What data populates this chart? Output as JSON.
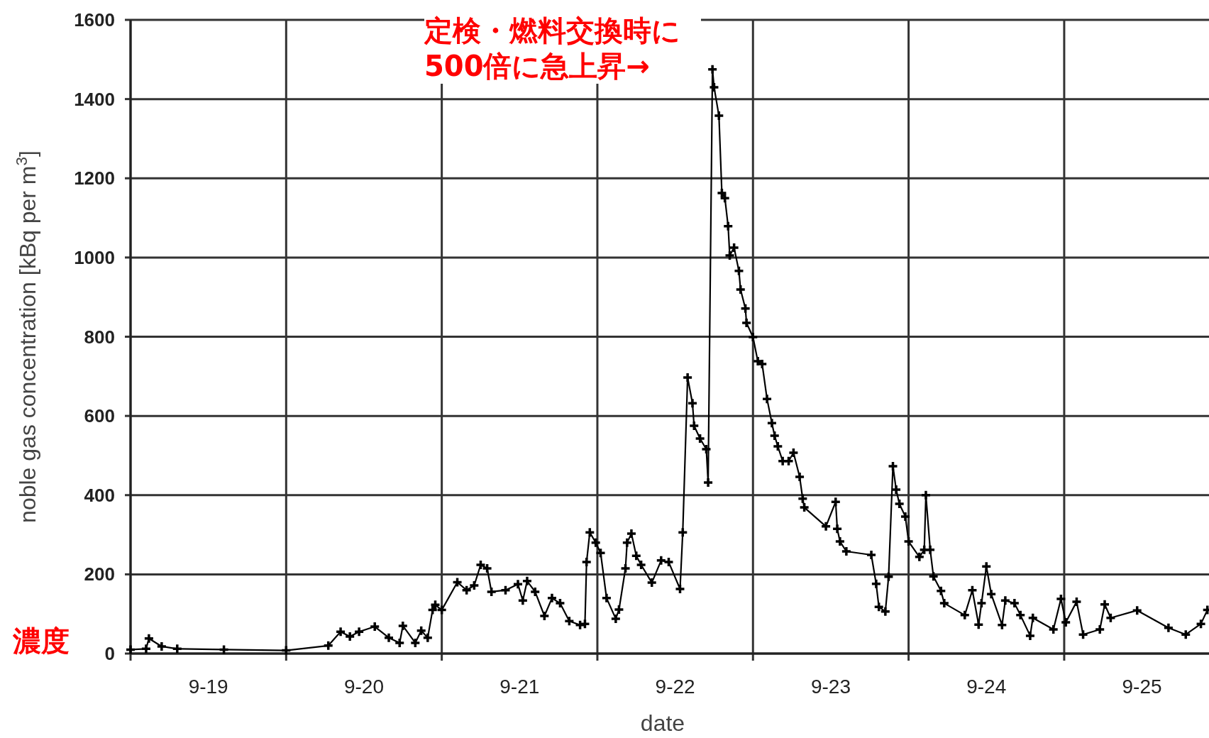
{
  "chart_data": {
    "type": "line",
    "xlabel": "date",
    "ylabel": "noble gas concentration [kBq per m$^{3}$]",
    "annotations": [
      "定検・燃料交換時に500倍に急上昇→",
      "濃度"
    ],
    "xlim": [
      "--09-19T00:00",
      "--09-25T22:20"
    ],
    "ylim": [
      0,
      1600
    ],
    "yticks": [
      0,
      200,
      400,
      600,
      800,
      1000,
      1200,
      1400,
      1600
    ],
    "xticks": [
      {
        "value": "--09-19",
        "label": null
      },
      {
        "value": "--09-19T12:00",
        "label": "9-19"
      },
      {
        "value": "--09-20",
        "label": null
      },
      {
        "value": "--09-20T12:00",
        "label": "9-20"
      },
      {
        "value": "--09-21",
        "label": null
      },
      {
        "value": "--09-21T12:00",
        "label": "9-21"
      },
      {
        "value": "--09-22",
        "label": null
      },
      {
        "value": "--09-22T12:00",
        "label": "9-22"
      },
      {
        "value": "--09-23",
        "label": null
      },
      {
        "value": "--09-23T12:00",
        "label": "9-23"
      },
      {
        "value": "--09-24",
        "label": null
      },
      {
        "value": "--09-24T12:00",
        "label": "9-24"
      },
      {
        "value": "--09-25",
        "label": null
      },
      {
        "value": "--09-25T12:00",
        "label": "9-25"
      }
    ],
    "grid": true,
    "marker": "cross",
    "line_style": "solid",
    "series": [
      {
        "color": "#000000",
        "x": [
          "--09-19T00:00",
          "--09-19T02:24",
          "--09-19T02:50",
          "--09-19T04:48",
          "--09-19T07:12",
          "--09-19T14:24",
          "--09-20T00:00",
          "--09-20T06:30",
          "--09-20T08:24",
          "--09-20T09:50",
          "--09-20T11:15",
          "--09-20T13:40",
          "--09-20T15:50",
          "--09-20T17:30",
          "--09-20T18:00",
          "--09-20T19:55",
          "--09-20T20:50",
          "--09-20T21:50",
          "--09-20T22:35",
          "--09-20T23:00",
          "--09-21T00:00",
          "--09-21T02:24",
          "--09-21T03:50",
          "--09-21T05:00",
          "--09-21T06:00",
          "--09-21T07:00",
          "--09-21T07:40",
          "--09-21T09:50",
          "--09-21T11:45",
          "--09-21T12:30",
          "--09-21T13:10",
          "--09-21T14:24",
          "--09-21T15:50",
          "--09-21T17:00",
          "--09-21T18:15",
          "--09-21T19:40",
          "--09-21T21:20",
          "--09-21T22:05",
          "--09-21T22:20",
          "--09-21T22:50",
          "--09-21T23:45",
          "--09-22T00:30",
          "--09-22T01:25",
          "--09-22T02:50",
          "--09-22T03:20",
          "--09-22T04:20",
          "--09-22T04:35",
          "--09-22T05:15",
          "--09-22T06:00",
          "--09-22T06:45",
          "--09-22T08:24",
          "--09-22T09:50",
          "--09-22T11:00",
          "--09-22T12:45",
          "--09-22T13:10",
          "--09-22T13:55",
          "--09-22T14:40",
          "--09-22T14:55",
          "--09-22T15:50",
          "--09-22T16:48",
          "--09-22T17:05",
          "--09-22T17:45",
          "--09-22T18:00",
          "--09-22T18:45",
          "--09-22T19:12",
          "--09-22T19:40",
          "--09-22T20:10",
          "--09-22T20:25",
          "--09-22T21:05",
          "--09-22T21:50",
          "--09-22T22:05",
          "--09-22T22:50",
          "--09-22T23:00",
          "--09-23T00:00",
          "--09-23T00:45",
          "--09-23T01:25",
          "--09-23T02:10",
          "--09-23T02:55",
          "--09-23T03:20",
          "--09-23T03:50",
          "--09-23T04:35",
          "--09-23T05:30",
          "--09-23T06:15",
          "--09-23T07:12",
          "--09-23T07:40",
          "--09-23T07:55",
          "--09-23T11:15",
          "--09-23T12:45",
          "--09-23T13:00",
          "--09-23T13:25",
          "--09-23T14:24",
          "--09-23T18:15",
          "--09-23T19:00",
          "--09-23T19:25",
          "--09-23T20:25",
          "--09-23T20:55",
          "--09-23T21:35",
          "--09-23T22:05",
          "--09-23T22:35",
          "--09-23T23:30",
          "--09-24T00:00",
          "--09-24T01:40",
          "--09-24T02:25",
          "--09-24T02:40",
          "--09-24T03:20",
          "--09-24T03:50",
          "--09-24T05:00",
          "--09-24T05:30",
          "--09-24T08:40",
          "--09-24T09:50",
          "--09-24T10:48",
          "--09-24T11:15",
          "--09-24T12:00",
          "--09-24T12:45",
          "--09-24T14:25",
          "--09-24T14:55",
          "--09-24T16:20",
          "--09-24T17:15",
          "--09-24T18:45",
          "--09-24T19:10",
          "--09-24T22:20",
          "--09-24T23:30",
          "--09-25T00:15",
          "--09-25T01:55",
          "--09-25T02:55",
          "--09-25T05:30",
          "--09-25T06:15",
          "--09-25T07:10",
          "--09-25T11:15",
          "--09-25T16:05",
          "--09-25T18:45",
          "--09-25T21:05",
          "--09-25T22:05"
        ],
        "values": [
          10,
          12,
          38,
          18,
          12,
          10,
          8,
          20,
          55,
          43,
          55,
          68,
          40,
          27,
          70,
          27,
          58,
          40,
          110,
          123,
          110,
          180,
          160,
          172,
          224,
          215,
          156,
          160,
          175,
          134,
          183,
          156,
          95,
          140,
          127,
          82,
          72,
          75,
          231,
          306,
          280,
          254,
          140,
          88,
          111,
          215,
          280,
          303,
          247,
          224,
          179,
          235,
          231,
          163,
          306,
          697,
          632,
          575,
          543,
          516,
          432,
          1475,
          1430,
          1358,
          1163,
          1150,
          1079,
          1005,
          1025,
          966,
          919,
          871,
          835,
          799,
          738,
          731,
          643,
          582,
          550,
          523,
          486,
          486,
          507,
          446,
          391,
          369,
          321,
          383,
          315,
          283,
          258,
          249,
          176,
          118,
          106,
          194,
          473,
          414,
          378,
          346,
          283,
          244,
          262,
          400,
          262,
          195,
          158,
          127,
          97,
          160,
          73,
          127,
          220,
          150,
          72,
          134,
          127,
          97,
          45,
          90,
          61,
          138,
          79,
          131,
          48,
          61,
          124,
          90,
          109,
          65,
          48,
          75,
          110
        ]
      }
    ]
  }
}
